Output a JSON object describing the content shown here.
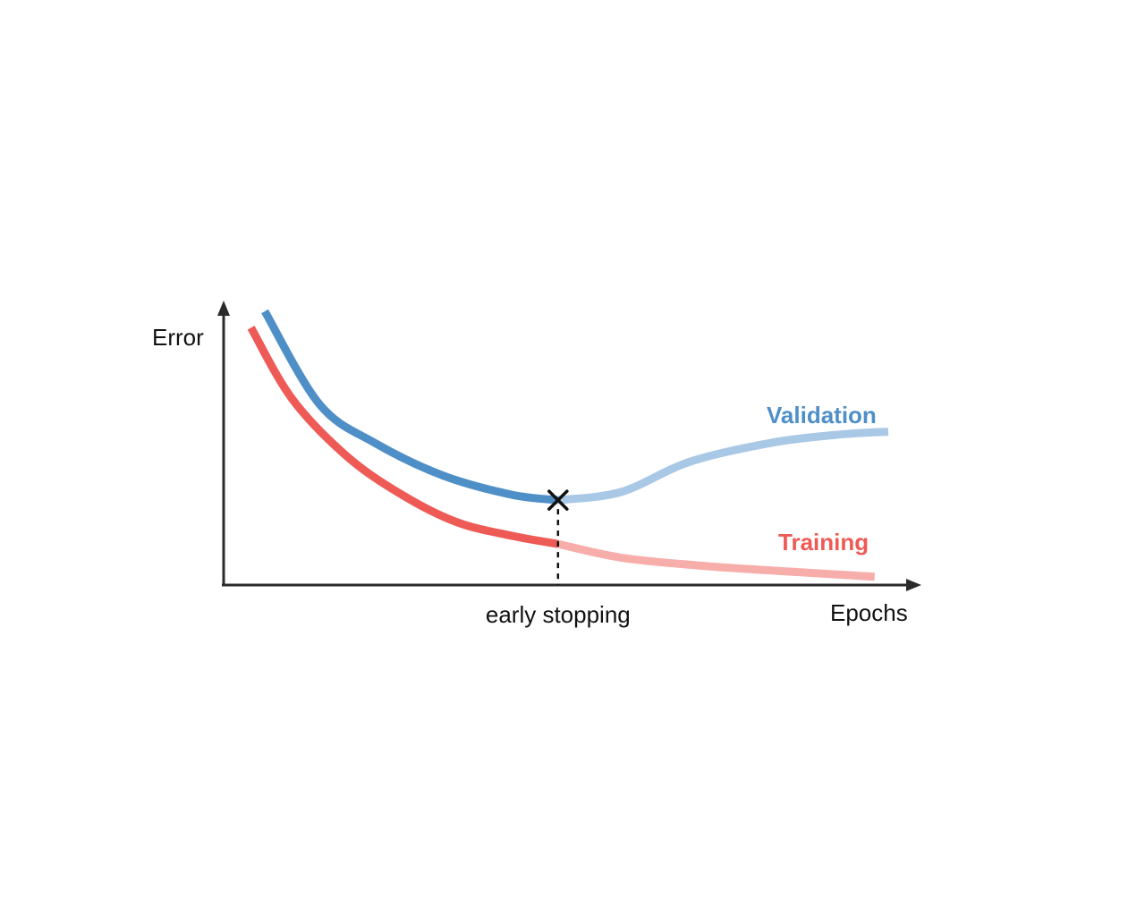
{
  "chart_data": {
    "type": "line",
    "xlabel": "Epochs",
    "ylabel": "Error",
    "grid": false,
    "colors": {
      "axis": "#2b2b2b",
      "validation": "#4f8fc8",
      "validation_faded": "#a9c8e6",
      "training": "#ee5a55",
      "training_faded": "#f7aeab",
      "marker": "#111111"
    },
    "xlim": [
      0,
      100
    ],
    "ylim": [
      0,
      100
    ],
    "series": [
      {
        "name": "Validation",
        "x": [
          6,
          14,
          22,
          32,
          42,
          48.8,
          58,
          68,
          80,
          90,
          97
        ],
        "y": [
          100,
          66,
          52,
          40,
          33,
          31,
          34,
          45,
          52,
          55,
          56
        ]
      },
      {
        "name": "Training",
        "x": [
          4,
          10,
          18,
          26,
          34,
          42,
          48.8,
          58,
          70,
          82,
          95
        ],
        "y": [
          94,
          68,
          47,
          33,
          23,
          18,
          15,
          10,
          7,
          5,
          3
        ]
      }
    ],
    "early_stopping": {
      "label": "early stopping",
      "x": 48.8,
      "y": 31
    }
  }
}
